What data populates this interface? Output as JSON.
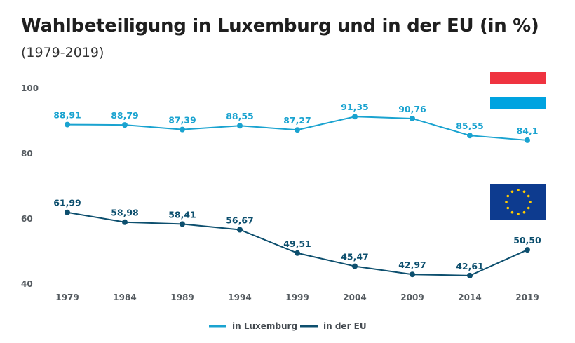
{
  "title": "Wahlbeteiligung in Luxemburg und in der EU (in %)",
  "subtitle": "(1979-2019)",
  "colors": {
    "luxembourg": "#1aa3d0",
    "eu": "#0d4f6e"
  },
  "chart_data": {
    "type": "line",
    "title": "Wahlbeteiligung in Luxemburg und in der EU (in %)",
    "subtitle": "(1979-2019)",
    "x": [
      "1979",
      "1984",
      "1989",
      "1994",
      "1999",
      "2004",
      "2009",
      "2014",
      "2019"
    ],
    "yticks": [
      "100",
      "80",
      "60",
      "40"
    ],
    "ylim": [
      40,
      100
    ],
    "grid": false,
    "legend_position": "bottom-center",
    "series": [
      {
        "name": "in Luxemburg",
        "color": "#1aa3d0",
        "values": [
          88.91,
          88.79,
          87.39,
          88.55,
          87.27,
          91.35,
          90.76,
          85.55,
          84.1
        ],
        "labels": [
          "88,91",
          "88,79",
          "87,39",
          "88,55",
          "87,27",
          "91,35",
          "90,76",
          "85,55",
          "84,1"
        ]
      },
      {
        "name": "in der EU",
        "color": "#0d4f6e",
        "values": [
          61.99,
          58.98,
          58.41,
          56.67,
          49.51,
          45.47,
          42.97,
          42.61,
          50.5
        ],
        "labels": [
          "61,99",
          "58,98",
          "58,41",
          "56,67",
          "49,51",
          "45,47",
          "42,97",
          "42,61",
          "50,50"
        ]
      }
    ]
  }
}
